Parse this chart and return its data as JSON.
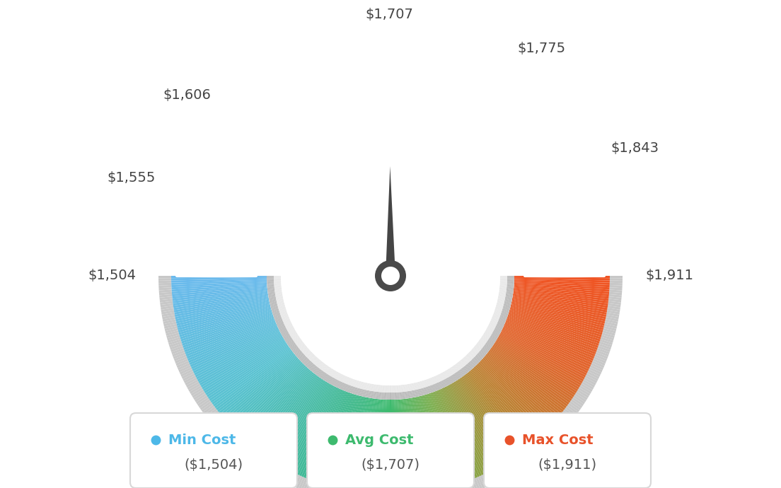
{
  "min_val": 1504,
  "max_val": 1911,
  "avg_val": 1707,
  "tick_labels": [
    {
      "val": 1504,
      "text": "$1,504",
      "ha": "right"
    },
    {
      "val": 1555,
      "text": "$1,555",
      "ha": "right"
    },
    {
      "val": 1606,
      "text": "$1,606",
      "ha": "right"
    },
    {
      "val": 1707,
      "text": "$1,707",
      "ha": "center"
    },
    {
      "val": 1775,
      "text": "$1,775",
      "ha": "left"
    },
    {
      "val": 1843,
      "text": "$1,843",
      "ha": "left"
    },
    {
      "val": 1911,
      "text": "$1,911",
      "ha": "left"
    }
  ],
  "legend": [
    {
      "label": "Min Cost",
      "value": "($1,504)",
      "color": "#4db8e8"
    },
    {
      "label": "Avg Cost",
      "value": "($1,707)",
      "color": "#3dba6e"
    },
    {
      "label": "Max Cost",
      "value": "($1,911)",
      "color": "#e8522a"
    }
  ],
  "colors_at": [
    [
      0.0,
      [
        0.42,
        0.73,
        0.93
      ]
    ],
    [
      0.2,
      [
        0.35,
        0.76,
        0.82
      ]
    ],
    [
      0.4,
      [
        0.24,
        0.72,
        0.55
      ]
    ],
    [
      0.5,
      [
        0.24,
        0.73,
        0.43
      ]
    ],
    [
      0.6,
      [
        0.48,
        0.68,
        0.3
      ]
    ],
    [
      0.72,
      [
        0.72,
        0.52,
        0.2
      ]
    ],
    [
      0.85,
      [
        0.88,
        0.4,
        0.18
      ]
    ],
    [
      1.0,
      [
        0.94,
        0.33,
        0.14
      ]
    ]
  ],
  "background_color": "#ffffff"
}
